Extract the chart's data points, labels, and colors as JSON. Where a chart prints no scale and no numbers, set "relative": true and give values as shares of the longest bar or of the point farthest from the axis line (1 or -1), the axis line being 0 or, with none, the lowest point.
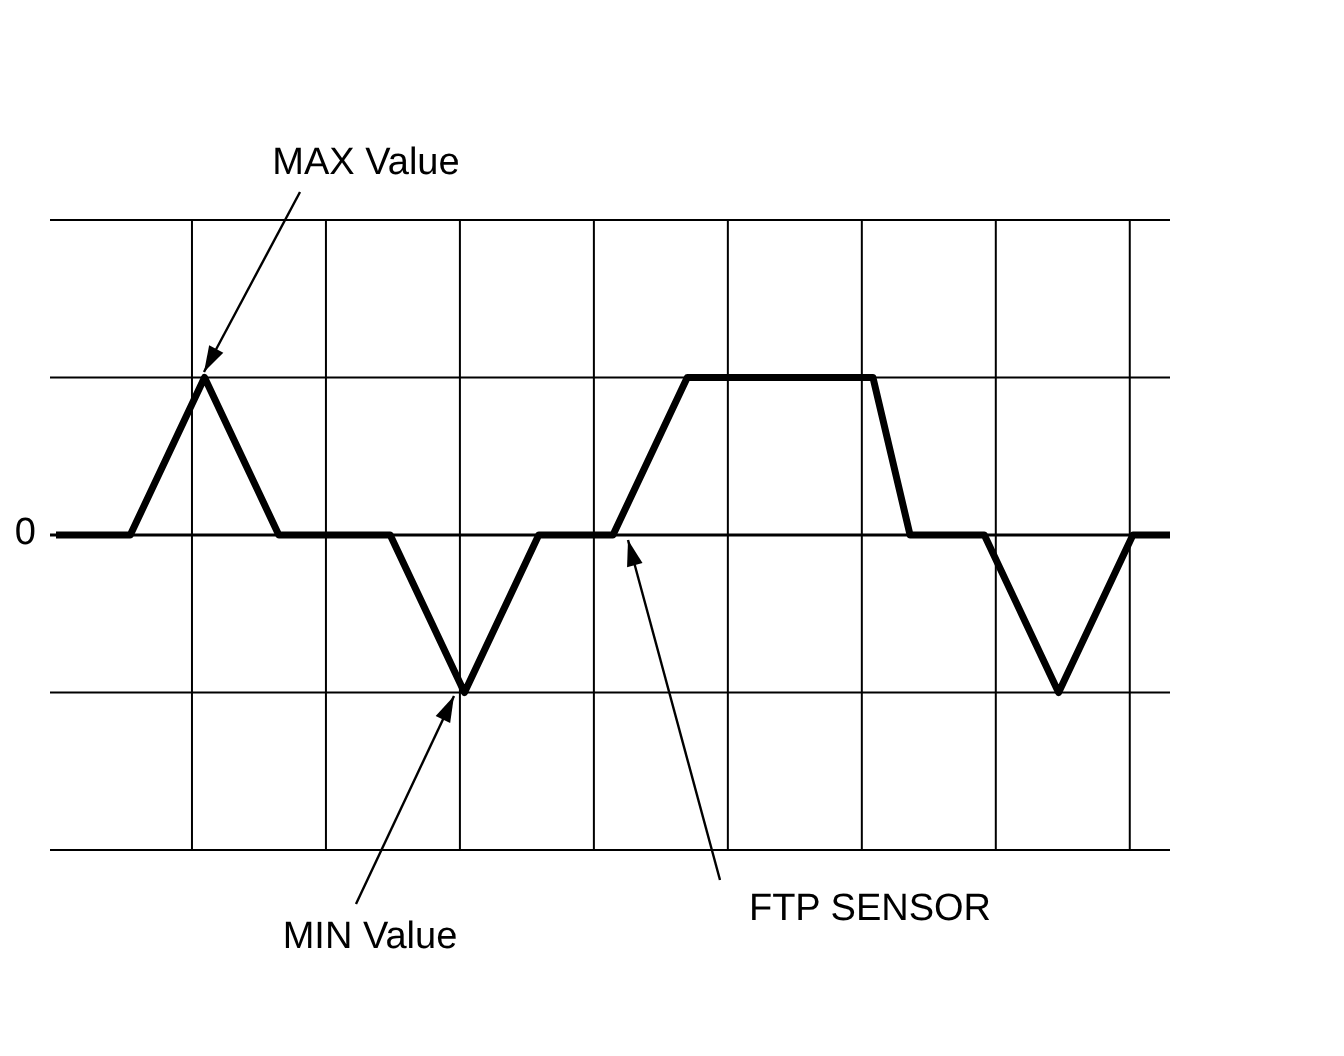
{
  "chart_data": {
    "type": "line",
    "relative": true,
    "categories": [
      null,
      null,
      null,
      null,
      null,
      null,
      null,
      null,
      null,
      null,
      null,
      null,
      null,
      null,
      null,
      null,
      null,
      null,
      null,
      null,
      null,
      null,
      null,
      null,
      null,
      null,
      null,
      null,
      null,
      null,
      null
    ],
    "values": [
      0,
      0,
      0,
      0.5,
      1,
      0.5,
      0,
      0,
      0,
      0,
      -0.5,
      -1,
      -0.5,
      0,
      0,
      0,
      0.5,
      1,
      1,
      1,
      1,
      1,
      1,
      0,
      0,
      0,
      -0.5,
      -1,
      -0.5,
      0,
      0
    ],
    "color": "#000000",
    "grid": true,
    "annotations": [
      "0",
      "MAX Value",
      "MIN Value",
      "FTP SENSOR"
    ]
  }
}
